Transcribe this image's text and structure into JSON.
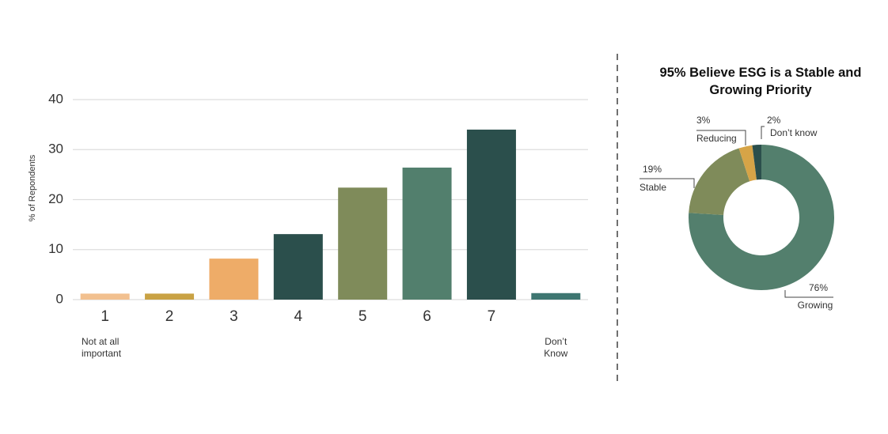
{
  "chart_data": [
    {
      "type": "bar",
      "y_label": "% of Repondents",
      "categories": [
        "1",
        "2",
        "3",
        "4",
        "5",
        "6",
        "7",
        "Don’t Know"
      ],
      "values": [
        1.2,
        1.2,
        8.2,
        13.1,
        22.4,
        26.4,
        34,
        1.3
      ],
      "colors": [
        "#f2c08f",
        "#c9a244",
        "#eeac68",
        "#2b4f4c",
        "#7f8b5a",
        "#527f6d",
        "#2b4f4c",
        "#3e7671"
      ],
      "annotation": "Not at all important",
      "ylim": [
        0,
        40
      ],
      "yticks": [
        0,
        10,
        20,
        30,
        40
      ],
      "grid": true
    },
    {
      "type": "donut",
      "title": "95% Believe ESG is a Stable and Growing Priority",
      "categories": [
        "Growing",
        "Stable",
        "Reducing",
        "Don’t know"
      ],
      "values": [
        76,
        19,
        3,
        2
      ],
      "value_labels": [
        "76%",
        "19%",
        "3%",
        "2%"
      ],
      "colors": [
        "#537f6d",
        "#7f8b5a",
        "#d6a447",
        "#2b4f4c"
      ]
    }
  ]
}
